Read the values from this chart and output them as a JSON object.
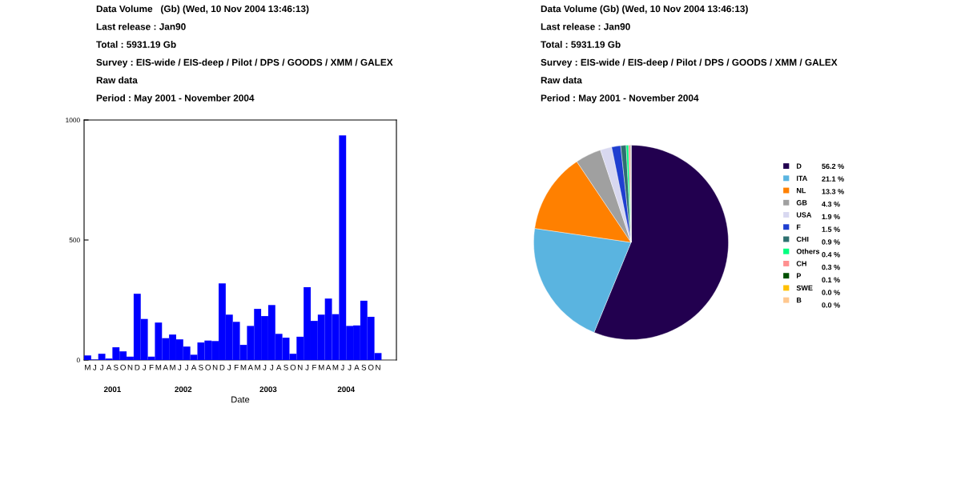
{
  "chart_data": [
    {
      "type": "bar",
      "title": "Data Volume   (Gb) (Wed, 10 Nov 2004 13:46:13)",
      "subtitle": "Last release : Jan90\nTotal : 5931.19 Gb\nSurvey : EIS-wide / EIS-deep / Pilot / DPS / GOODS / XMM / GALEX\nRaw data\nPeriod : May 2001 - November 2004",
      "xlabel": "Date",
      "categories": [
        "M",
        "J",
        "J",
        "A",
        "S",
        "O",
        "N",
        "D",
        "J",
        "F",
        "M",
        "A",
        "M",
        "J",
        "J",
        "A",
        "S",
        "O",
        "N",
        "D",
        "J",
        "F",
        "M",
        "A",
        "M",
        "J",
        "J",
        "A",
        "S",
        "O",
        "N",
        "J",
        "F",
        "M",
        "A",
        "M",
        "J",
        "J",
        "A",
        "S",
        "O",
        "N"
      ],
      "values": [
        19,
        2,
        26,
        6,
        53,
        36,
        14,
        276,
        171,
        14,
        156,
        91,
        106,
        86,
        56,
        22,
        73,
        81,
        79,
        319,
        189,
        159,
        63,
        142,
        213,
        183,
        229,
        109,
        93,
        26,
        97,
        303,
        163,
        189,
        256,
        191,
        936,
        142,
        144,
        247,
        180,
        29
      ],
      "color": "#0000ff",
      "ylim": [
        0,
        1000
      ],
      "yticks": [
        0,
        500,
        1000
      ],
      "grid": false,
      "annotations": [
        "2001",
        "2002",
        "2003",
        "2004"
      ]
    },
    {
      "type": "pie",
      "title": "Data Volume (Gb) (Wed, 10 Nov 2004 13:46:13)",
      "subtitle": "Last release : Jan90\nTotal : 5931.19 Gb\nSurvey : EIS-wide / EIS-deep / Pilot / DPS / GOODS / XMM / GALEX\nRaw data\nPeriod : May 2001 - November 2004",
      "categories": [
        "D",
        "ITA",
        "NL",
        "GB",
        "USA",
        "F",
        "CHI",
        "Others",
        "CH",
        "P",
        "SWE",
        "B"
      ],
      "values": [
        56.2,
        21.1,
        13.3,
        4.3,
        1.9,
        1.5,
        0.9,
        0.4,
        0.3,
        0.1,
        0.0,
        0.0
      ],
      "value_labels": [
        "56.2 %",
        "21.1 %",
        "13.3 %",
        "4.3 %",
        "1.9 %",
        "1.5 %",
        "0.9 %",
        "0.4 %",
        "0.3 %",
        "0.1 %",
        "0.0 %",
        "0.0 %"
      ],
      "colors": [
        "#22004f",
        "#5ab4e0",
        "#ff8000",
        "#a0a0a0",
        "#d8d8f0",
        "#1f3fd0",
        "#2e7070",
        "#00ff80",
        "#ff9090",
        "#005000",
        "#ffc000",
        "#ffc890"
      ],
      "legend": "right"
    }
  ]
}
